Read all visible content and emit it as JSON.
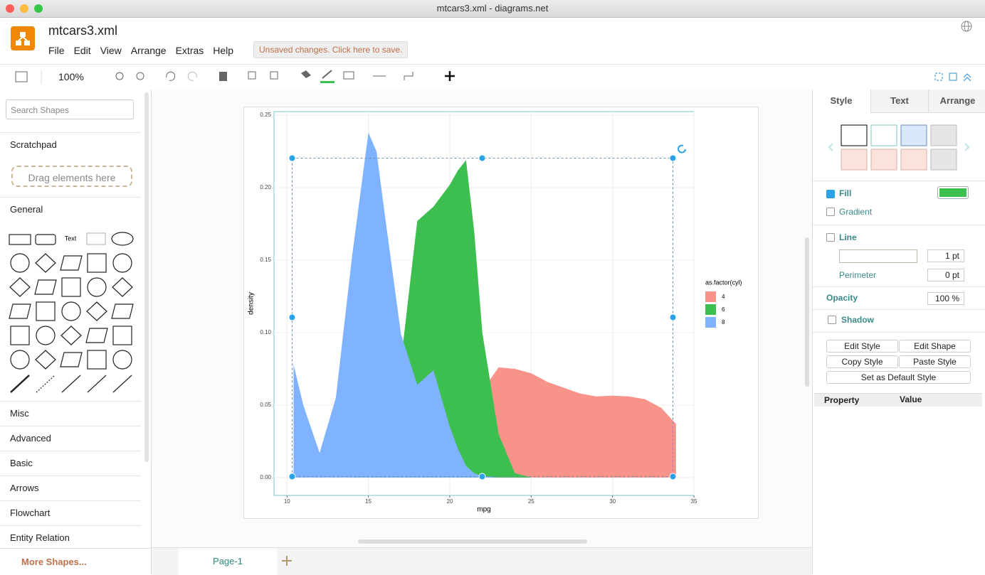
{
  "window_title": "mtcars3.xml - diagrams.net",
  "header": {
    "file_name": "mtcars3.xml",
    "menu": [
      "File",
      "Edit",
      "View",
      "Arrange",
      "Extras",
      "Help"
    ],
    "save_notice": "Unsaved changes. Click here to save."
  },
  "toolbar": {
    "zoom": "100%"
  },
  "sidebar": {
    "search_placeholder": "Search Shapes",
    "scratchpad": "Scratchpad",
    "drop_hint": "Drag elements here",
    "general": "General",
    "text_shape": "Text",
    "sections": [
      "Misc",
      "Advanced",
      "Basic",
      "Arrows",
      "Flowchart",
      "Entity Relation"
    ],
    "more_shapes": "More Shapes..."
  },
  "pages": [
    "Page-1"
  ],
  "format_panel": {
    "tabs": [
      "Style",
      "Text",
      "Arrange"
    ],
    "fill": "Fill",
    "gradient": "Gradient",
    "line": "Line",
    "line_width": "1 pt",
    "perimeter": "Perimeter",
    "perimeter_width": "0 pt",
    "opacity": "Opacity",
    "opacity_value": "100 %",
    "shadow": "Shadow",
    "buttons": [
      "Edit Style",
      "Edit Shape",
      "Copy Style",
      "Paste Style",
      "Set as Default Style"
    ],
    "property_headers": [
      "Property",
      "Value"
    ]
  },
  "chart_data": {
    "type": "area",
    "x_label": "mpg",
    "y_label": "density",
    "legend_title": "as.factor(cyl)",
    "x": [
      10.4,
      11,
      12,
      13,
      14,
      15,
      15.5,
      16,
      17,
      18,
      19,
      20,
      20.5,
      21,
      21.5,
      22,
      23,
      24,
      25,
      26,
      27,
      28,
      29,
      30,
      31,
      32,
      33,
      33.9
    ],
    "series": [
      {
        "name": "4",
        "color": "#f8938a",
        "values": [
          0,
          0,
          0,
          0,
          0,
          0,
          0,
          0,
          0.001,
          0.002,
          0.008,
          0.02,
          0.03,
          0.04,
          0.05,
          0.06,
          0.076,
          0.075,
          0.072,
          0.066,
          0.062,
          0.058,
          0.056,
          0.0565,
          0.056,
          0.054,
          0.048,
          0.037
        ]
      },
      {
        "name": "6",
        "color": "#3dbf50",
        "values": [
          0,
          0,
          0,
          0,
          0,
          0.002,
          0.006,
          0.02,
          0.08,
          0.177,
          0.187,
          0.202,
          0.212,
          0.219,
          0.17,
          0.1,
          0.03,
          0.003,
          0,
          0,
          0,
          0,
          0,
          0,
          0,
          0,
          0,
          0
        ]
      },
      {
        "name": "8",
        "color": "#7fb3ff",
        "values": [
          0.078,
          0.05,
          0.017,
          0.055,
          0.153,
          0.238,
          0.225,
          0.182,
          0.099,
          0.064,
          0.074,
          0.035,
          0.02,
          0.008,
          0.003,
          0.001,
          0,
          0,
          0,
          0,
          0,
          0,
          0,
          0,
          0,
          0,
          0,
          0
        ]
      }
    ],
    "xlim": [
      9.2,
      35
    ],
    "xticks": [
      10,
      15,
      20,
      25,
      30,
      35
    ],
    "ylim": [
      -0.0123,
      0.2525
    ],
    "yticks": [
      {
        "value": 0,
        "label": "0.00"
      },
      {
        "value": 0.05,
        "label": "0.05"
      },
      {
        "value": 0.1,
        "label": "0.10"
      },
      {
        "value": 0.15,
        "label": "0.15"
      },
      {
        "value": 0.2,
        "label": "0.20"
      },
      {
        "value": 0.25,
        "label": "0.25"
      }
    ],
    "grid": true
  }
}
